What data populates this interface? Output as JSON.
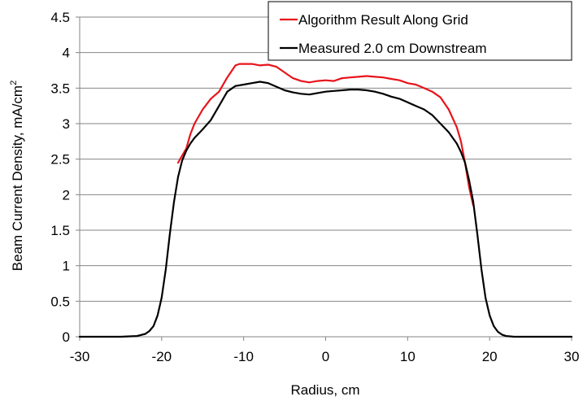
{
  "chart_data": {
    "type": "line",
    "xlabel": "Radius, cm",
    "ylabel_main": "Beam Current Density, mA/cm",
    "ylabel_sup": "2",
    "xlim": [
      -30,
      30
    ],
    "ylim": [
      0,
      4.5
    ],
    "x_ticks": [
      -30,
      -20,
      -10,
      0,
      10,
      20,
      30
    ],
    "y_ticks": [
      0,
      0.5,
      1,
      1.5,
      2,
      2.5,
      3,
      3.5,
      4,
      4.5
    ],
    "x_tick_labels": [
      "-30",
      "-20",
      "-10",
      "0",
      "10",
      "20",
      "30"
    ],
    "y_tick_labels": [
      "0",
      "0.5",
      "1",
      "1.5",
      "2",
      "2.5",
      "3",
      "3.5",
      "4",
      "4.5"
    ],
    "grid": "horizontal",
    "legend_position": "top-right",
    "series": [
      {
        "name": "Algorithm Result Along Grid",
        "color": "#e8141b",
        "x": [
          -18,
          -17,
          -16.5,
          -16,
          -15,
          -14,
          -13,
          -12,
          -11,
          -10.5,
          -10,
          -9,
          -8,
          -7,
          -6,
          -5,
          -4,
          -3,
          -2,
          -1,
          0,
          1,
          2,
          3,
          4,
          5,
          6,
          7,
          8,
          9,
          10,
          11,
          12,
          13,
          14,
          15,
          16,
          16.5,
          17,
          17.5,
          18
        ],
        "y": [
          2.45,
          2.65,
          2.85,
          3.0,
          3.2,
          3.35,
          3.45,
          3.65,
          3.82,
          3.84,
          3.84,
          3.84,
          3.82,
          3.83,
          3.8,
          3.72,
          3.64,
          3.6,
          3.58,
          3.6,
          3.61,
          3.6,
          3.64,
          3.65,
          3.66,
          3.67,
          3.66,
          3.65,
          3.63,
          3.61,
          3.57,
          3.55,
          3.5,
          3.45,
          3.37,
          3.2,
          2.95,
          2.75,
          2.45,
          2.1,
          1.85
        ]
      },
      {
        "name": "Measured 2.0 cm Downstream",
        "color": "#000000",
        "x": [
          -30,
          -25,
          -23,
          -22,
          -21.5,
          -21,
          -20.5,
          -20,
          -19.5,
          -19,
          -18.5,
          -18,
          -17.5,
          -17,
          -16.5,
          -16,
          -15,
          -14,
          -13,
          -12,
          -11,
          -10,
          -9,
          -8,
          -7,
          -6,
          -5,
          -4,
          -3,
          -2,
          -1,
          0,
          1,
          2,
          3,
          4,
          5,
          6,
          7,
          8,
          9,
          10,
          11,
          12,
          13,
          14,
          15,
          16,
          16.5,
          17,
          17.5,
          18,
          18.5,
          19,
          19.5,
          20,
          20.5,
          21,
          21.5,
          22,
          23,
          25,
          30
        ],
        "y": [
          0,
          0,
          0.01,
          0.04,
          0.08,
          0.15,
          0.3,
          0.55,
          0.95,
          1.45,
          1.9,
          2.25,
          2.48,
          2.62,
          2.72,
          2.8,
          2.92,
          3.05,
          3.25,
          3.45,
          3.53,
          3.55,
          3.57,
          3.59,
          3.57,
          3.52,
          3.47,
          3.44,
          3.42,
          3.41,
          3.43,
          3.45,
          3.46,
          3.47,
          3.48,
          3.48,
          3.47,
          3.45,
          3.42,
          3.38,
          3.35,
          3.3,
          3.25,
          3.2,
          3.12,
          3.0,
          2.88,
          2.72,
          2.6,
          2.45,
          2.2,
          1.9,
          1.45,
          0.95,
          0.55,
          0.3,
          0.15,
          0.07,
          0.03,
          0.01,
          0,
          0,
          0
        ]
      }
    ]
  }
}
